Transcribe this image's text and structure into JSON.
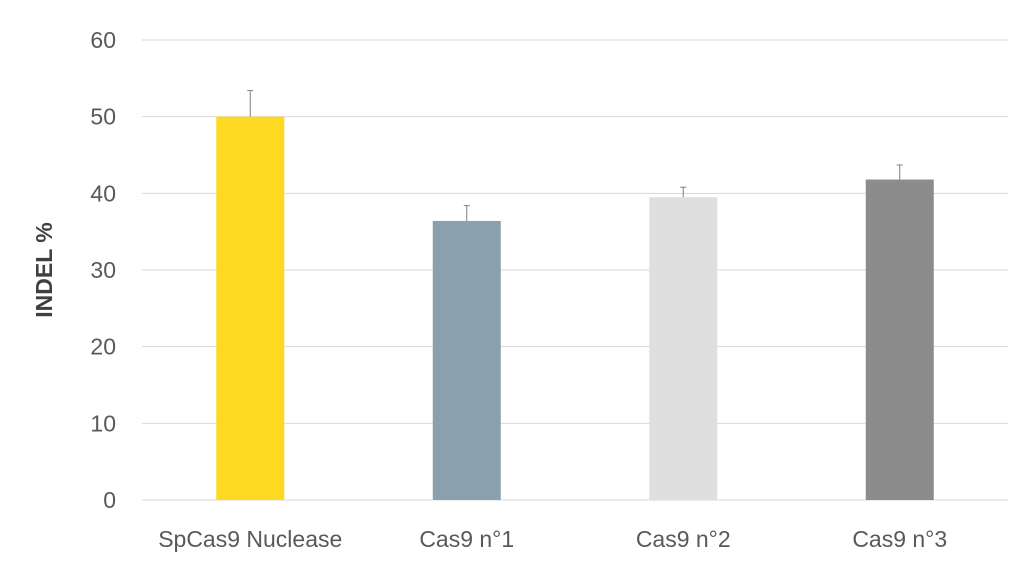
{
  "chart_data": {
    "type": "bar",
    "title": "",
    "xlabel": "",
    "ylabel": "INDEL %",
    "ylim": [
      0,
      60
    ],
    "yticks": [
      0,
      10,
      20,
      30,
      40,
      50,
      60
    ],
    "grid": true,
    "legend": "none",
    "categories": [
      "SpCas9 Nuclease",
      "Cas9 n°1",
      "Cas9 n°2",
      "Cas9 n°3"
    ],
    "values": [
      50.0,
      36.4,
      39.5,
      41.8
    ],
    "errors": [
      3.4,
      2.0,
      1.3,
      1.9
    ],
    "colors": [
      "#FDD921",
      "#8AA0AD",
      "#DFDFDF",
      "#8C8C8C"
    ]
  }
}
